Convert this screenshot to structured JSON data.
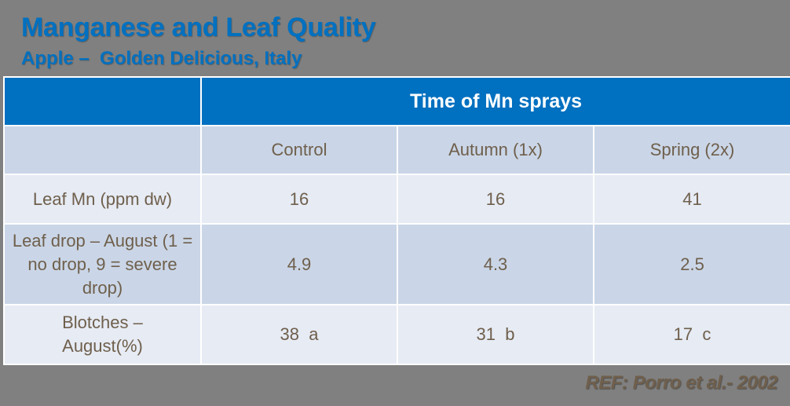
{
  "slide": {
    "title": "Manganese and Leaf Quality",
    "subtitle": "Apple –  Golden Delicious, Italy",
    "reference": "REF: Porro et al.- 2002"
  },
  "table": {
    "group_header": "Time of Mn sprays",
    "columns": [
      "Control",
      "Autumn (1x)",
      "Spring (2x)"
    ],
    "rows": [
      {
        "label": "Leaf Mn (ppm dw)",
        "values": [
          "16",
          "16",
          "41"
        ]
      },
      {
        "label": "Leaf drop – August (1 = no drop, 9 = severe drop)",
        "values": [
          "4.9",
          "4.3",
          "2.5"
        ]
      },
      {
        "label": "Blotches – August(%)",
        "values": [
          "38  a",
          "31  b",
          "17  c"
        ]
      }
    ]
  },
  "colors": {
    "title": "#0070c0",
    "header_bg": "#0070c0",
    "row_dark": "#cad6e7",
    "row_light": "#e6ebf4",
    "text": "#6f5f4c",
    "background": "#808080"
  }
}
